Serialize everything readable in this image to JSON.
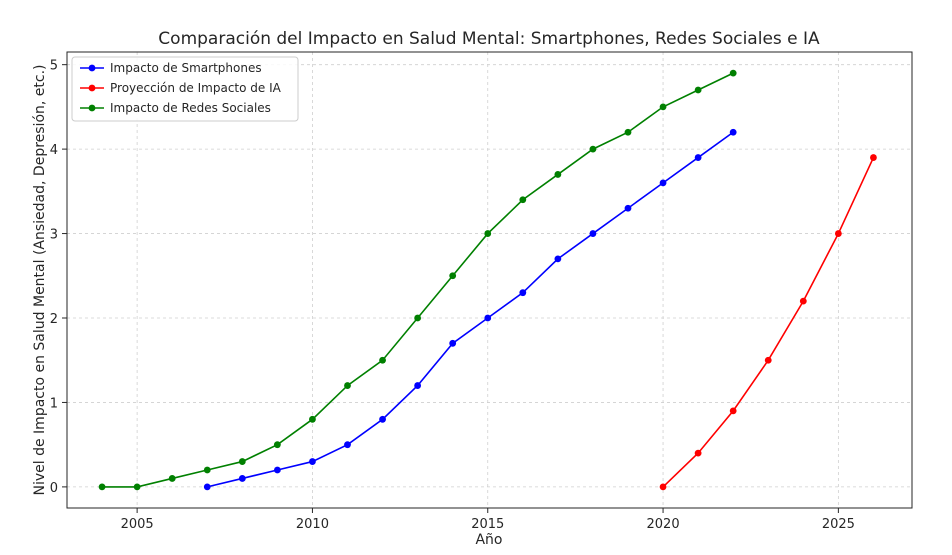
{
  "chart_data": {
    "type": "line",
    "title": "Comparación del Impacto en Salud Mental: Smartphones, Redes Sociales e IA",
    "xlabel": "Año",
    "ylabel": "Nivel de Impacto en Salud Mental (Ansiedad, Depresión, etc.)",
    "xlim": [
      2003,
      2027.1
    ],
    "ylim": [
      -0.25,
      5.15
    ],
    "xticks": [
      2005,
      2010,
      2015,
      2020,
      2025
    ],
    "yticks": [
      0,
      1,
      2,
      3,
      4,
      5
    ],
    "grid": true,
    "legend_position": "top-left",
    "series": [
      {
        "name": "Impacto de Smartphones",
        "color": "#0000ff",
        "x": [
          2007,
          2008,
          2009,
          2010,
          2011,
          2012,
          2013,
          2014,
          2015,
          2016,
          2017,
          2018,
          2019,
          2020,
          2021,
          2022
        ],
        "values": [
          0,
          0.1,
          0.2,
          0.3,
          0.5,
          0.8,
          1.2,
          1.7,
          2.0,
          2.3,
          2.7,
          3.0,
          3.3,
          3.6,
          3.9,
          4.2
        ]
      },
      {
        "name": "Proyección de Impacto de IA",
        "color": "#ff0000",
        "x": [
          2020,
          2021,
          2022,
          2023,
          2024,
          2025,
          2026
        ],
        "values": [
          0,
          0.4,
          0.9,
          1.5,
          2.2,
          3.0,
          3.9
        ]
      },
      {
        "name": "Impacto de Redes Sociales",
        "color": "#008000",
        "x": [
          2004,
          2005,
          2006,
          2007,
          2008,
          2009,
          2010,
          2011,
          2012,
          2013,
          2014,
          2015,
          2016,
          2017,
          2018,
          2019,
          2020,
          2021,
          2022
        ],
        "values": [
          0,
          0,
          0.1,
          0.2,
          0.3,
          0.5,
          0.8,
          1.2,
          1.5,
          2.0,
          2.5,
          3.0,
          3.4,
          3.7,
          4.0,
          4.2,
          4.5,
          4.7,
          4.9
        ]
      }
    ]
  }
}
